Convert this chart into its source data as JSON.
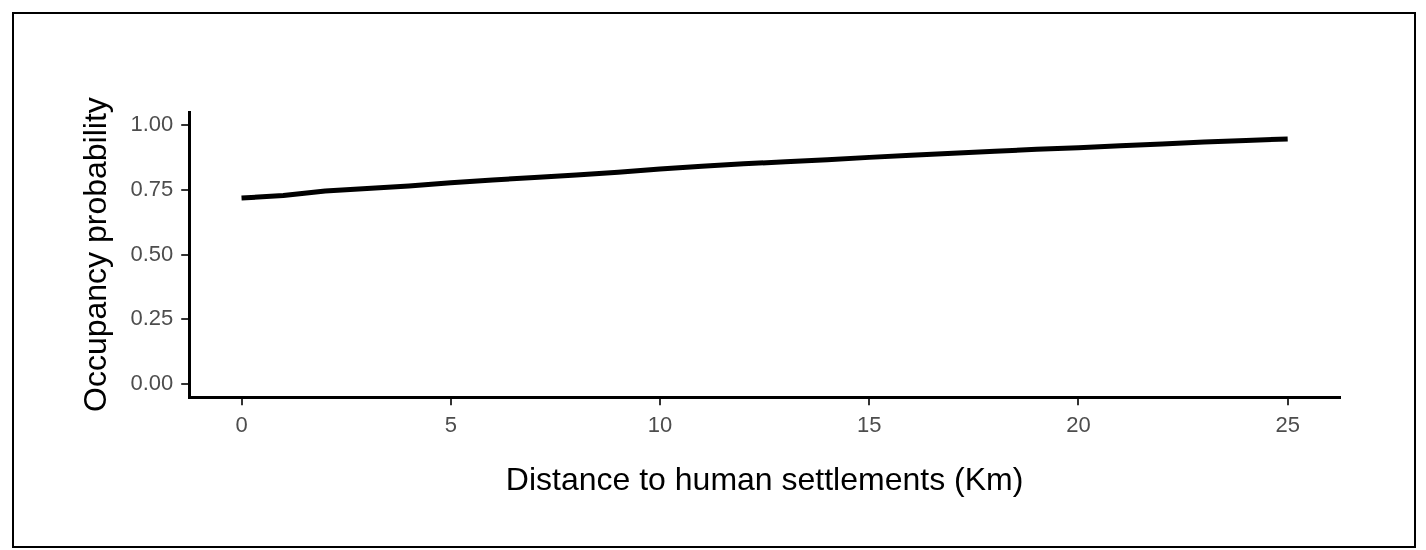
{
  "chart_data": {
    "type": "line",
    "xlabel": "Distance to human settlements (Km)",
    "ylabel": "Occupancy probability",
    "x": [
      0,
      1,
      2,
      3,
      4,
      5,
      6,
      7,
      8,
      9,
      10,
      11,
      12,
      13,
      14,
      15,
      16,
      17,
      18,
      19,
      20,
      21,
      22,
      23,
      24,
      25
    ],
    "series": [
      {
        "color": "#000000",
        "values": [
          0.718,
          0.728,
          0.745,
          0.755,
          0.765,
          0.777,
          0.788,
          0.797,
          0.807,
          0.818,
          0.83,
          0.841,
          0.85,
          0.858,
          0.866,
          0.875,
          0.883,
          0.891,
          0.899,
          0.906,
          0.912,
          0.92,
          0.927,
          0.934,
          0.94,
          0.946
        ]
      }
    ],
    "xlim": [
      -1.25,
      26.25
    ],
    "xticks": [
      0,
      5,
      10,
      15,
      20,
      25
    ],
    "ylim": [
      -0.05,
      1.05
    ],
    "yticks": [
      {
        "value": 0,
        "label": "0.00"
      },
      {
        "value": 0.25,
        "label": "0.25"
      },
      {
        "value": 0.5,
        "label": "0.50"
      },
      {
        "value": 0.75,
        "label": "0.75"
      },
      {
        "value": 1,
        "label": "1.00"
      }
    ],
    "marker": "none",
    "line_style": "solid",
    "legend": false
  }
}
